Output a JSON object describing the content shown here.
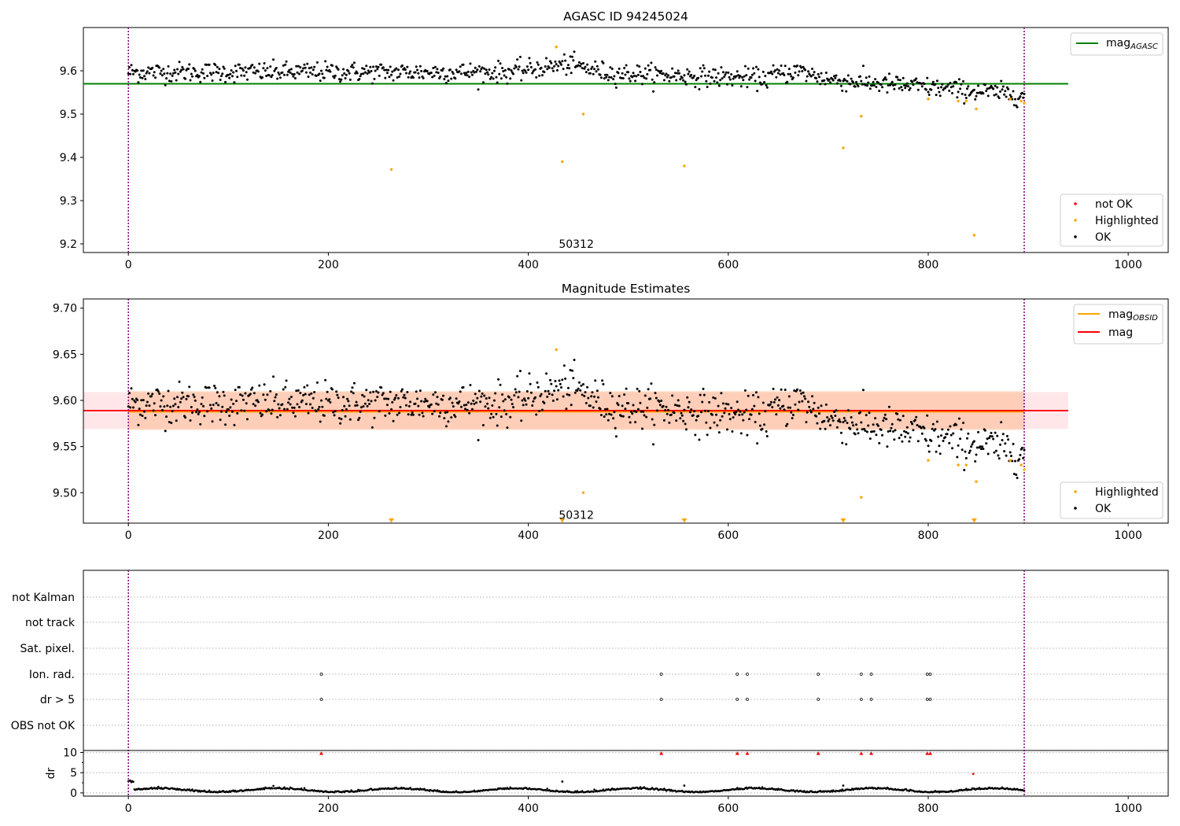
{
  "chart_data": [
    {
      "type": "scatter",
      "title": "AGASC ID 94245024",
      "xlim": [
        -45,
        1040
      ],
      "ylim": [
        9.18,
        9.7
      ],
      "xticks": [
        0,
        200,
        400,
        600,
        800,
        1000
      ],
      "yticks": [
        9.2,
        9.3,
        9.4,
        9.5,
        9.6
      ],
      "vlines": [
        0,
        896
      ],
      "hline": {
        "value": 9.57,
        "x_range": [
          -45,
          940
        ],
        "color": "#008000"
      },
      "obsid_label": {
        "text": "50312",
        "x": 448,
        "y": 9.2
      },
      "legend_lines": [
        {
          "label": "mag",
          "sub": "AGASC",
          "color": "#008000"
        }
      ],
      "legend_points": [
        {
          "label": "not OK",
          "color": "#ff0000"
        },
        {
          "label": "Highlighted",
          "color": "#ffa500"
        },
        {
          "label": "OK",
          "color": "#000000"
        }
      ],
      "highlighted": [
        [
          263,
          9.372
        ],
        [
          428,
          9.655
        ],
        [
          434,
          9.39
        ],
        [
          455,
          9.5
        ],
        [
          556,
          9.38
        ],
        [
          715,
          9.422
        ],
        [
          733,
          9.495
        ],
        [
          800,
          9.535
        ],
        [
          830,
          9.53
        ],
        [
          838,
          9.53
        ],
        [
          846,
          9.22
        ],
        [
          848,
          9.512
        ],
        [
          882,
          9.535
        ],
        [
          893,
          9.53
        ],
        [
          896,
          9.525
        ]
      ]
    },
    {
      "type": "scatter",
      "title": "Magnitude Estimates",
      "xlim": [
        -45,
        1040
      ],
      "ylim": [
        9.467,
        9.71
      ],
      "xticks": [
        0,
        200,
        400,
        600,
        800,
        1000
      ],
      "yticks": [
        9.5,
        9.55,
        9.6,
        9.65,
        9.7
      ],
      "vlines": [
        0,
        896
      ],
      "band_outer": {
        "range": [
          9.569,
          9.609
        ],
        "x_range": [
          -45,
          940
        ]
      },
      "band_inner": {
        "range": [
          9.568,
          9.61
        ],
        "x_range": [
          0,
          896
        ]
      },
      "mag_line": {
        "value": 9.589,
        "x_range": [
          -45,
          940
        ],
        "color": "#ff0000"
      },
      "obsid_line": {
        "value": 9.588,
        "x_range": [
          0,
          896
        ],
        "color": "#ffa500"
      },
      "obsid_label": {
        "text": "50312",
        "x": 448,
        "y": 9.476
      },
      "legend_lines": [
        {
          "label": "mag",
          "sub": "OBSID",
          "color": "#ffa500"
        },
        {
          "label": "mag",
          "sub": "",
          "color": "#ff0000"
        }
      ],
      "legend_points": [
        {
          "label": "Highlighted",
          "color": "#ffa500"
        },
        {
          "label": "OK",
          "color": "#000000"
        }
      ],
      "down_markers_x": [
        263,
        434,
        556,
        715,
        846
      ],
      "highlighted": [
        [
          428,
          9.655
        ],
        [
          455,
          9.5
        ],
        [
          733,
          9.495
        ],
        [
          800,
          9.535
        ],
        [
          830,
          9.53
        ],
        [
          838,
          9.53
        ],
        [
          848,
          9.512
        ],
        [
          882,
          9.535
        ],
        [
          893,
          9.53
        ],
        [
          896,
          9.525
        ]
      ]
    },
    {
      "type": "scatter",
      "xlim": [
        -45,
        1040
      ],
      "vlines": [
        0,
        896
      ],
      "flag_labels": [
        "not Kalman",
        "not track",
        "Sat. pixel.",
        "Ion. rad.",
        "dr > 5",
        "OBS not OK"
      ],
      "flag_points": {
        "Ion. rad.": [
          193,
          533,
          609,
          619,
          690,
          733,
          743,
          799,
          802
        ],
        "dr > 5": [
          193,
          533,
          609,
          619,
          690,
          733,
          743,
          799,
          802
        ]
      },
      "dr_ylim": [
        -0.8,
        10.5
      ],
      "dr_yticks": [
        0,
        5,
        10
      ],
      "dr_ylabel": "dr",
      "xticks": [
        0,
        200,
        400,
        600,
        800,
        1000
      ],
      "dr_capped": [
        193,
        533,
        609,
        619,
        690,
        733,
        743,
        799,
        802
      ],
      "dr_outliers": [
        [
          845,
          4.7
        ],
        [
          434,
          2.8
        ],
        [
          556,
          1.8
        ],
        [
          715,
          1.8
        ]
      ]
    }
  ]
}
